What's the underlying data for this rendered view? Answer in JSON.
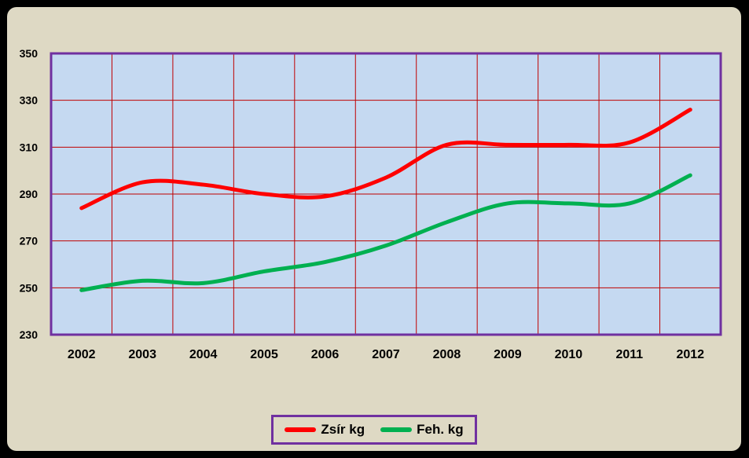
{
  "chart_data": {
    "type": "line",
    "categories": [
      "2002",
      "2003",
      "2004",
      "2005",
      "2006",
      "2007",
      "2008",
      "2009",
      "2010",
      "2011",
      "2012"
    ],
    "series": [
      {
        "name": "Zsír kg",
        "color": "#ff0000",
        "values": [
          284,
          295,
          294,
          290,
          289,
          297,
          311,
          311,
          311,
          312,
          326
        ]
      },
      {
        "name": "Feh. kg",
        "color": "#00b050",
        "values": [
          249,
          253,
          252,
          257,
          261,
          268,
          278,
          286,
          286,
          286,
          298
        ]
      }
    ],
    "y_ticks": [
      "350",
      "330",
      "310",
      "290",
      "270",
      "250",
      "230"
    ],
    "ylim": [
      230,
      350
    ],
    "y_step": 20,
    "grid": true,
    "grid_color": "#c00000",
    "plot_background": "#c5d9f1",
    "plot_border_color": "#7030a0",
    "chart_background": "#ded9c4",
    "legend_position": "bottom"
  },
  "legend": {
    "items": [
      {
        "label": "Zsír kg",
        "color": "#ff0000"
      },
      {
        "label": "Feh. kg",
        "color": "#00b050"
      }
    ]
  }
}
